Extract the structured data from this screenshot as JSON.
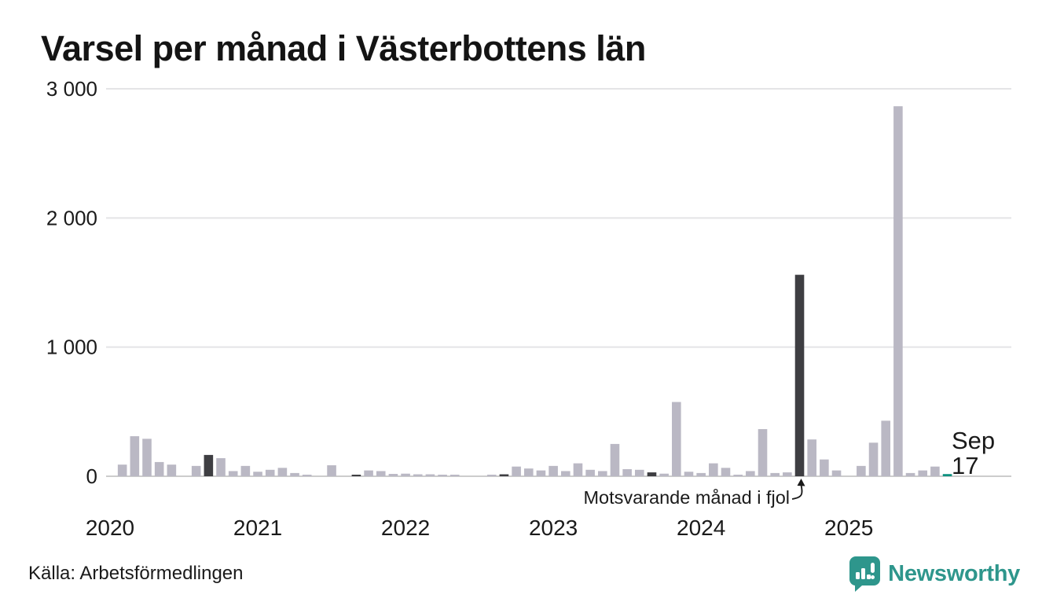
{
  "title": "Varsel per månad i Västerbottens län",
  "source": "Källa: Arbetsförmedlingen",
  "brand": {
    "name": "Newsworthy",
    "icon": "newsworthy-bubble-chart-icon",
    "color": "#2e968c"
  },
  "annotation": {
    "text": "Motsvarande månad i fjol",
    "points_to": "2024-09"
  },
  "current_label": {
    "line1": "Sep",
    "line2": "17"
  },
  "colors": {
    "bar": "#bab8c4",
    "highlight_prev_sep": "#3e3e42",
    "current_month": "#0e9180",
    "grid": "#e4e4e6",
    "axis_line": "#cccccc",
    "text": "#1a1a1a"
  },
  "chart_data": {
    "type": "bar",
    "title": "Varsel per månad i Västerbottens län",
    "xlabel": "",
    "ylabel": "",
    "ylim": [
      0,
      3000
    ],
    "grid": "horizontal",
    "x_start": "2020-01",
    "x_end": "2025-09",
    "year_ticks": [
      "2020",
      "2021",
      "2022",
      "2023",
      "2024",
      "2025"
    ],
    "y_ticks": [
      {
        "value": 0,
        "label": "0"
      },
      {
        "value": 1000,
        "label": "1 000"
      },
      {
        "value": 2000,
        "label": "2 000"
      },
      {
        "value": 3000,
        "label": "3 000"
      }
    ],
    "highlight_months": [
      "2020-09",
      "2021-09",
      "2022-09",
      "2023-09",
      "2024-09"
    ],
    "current_month": "2025-09",
    "current_value": 17,
    "series": [
      {
        "name": "Varsel",
        "values": [
          0,
          90,
          310,
          290,
          110,
          90,
          0,
          80,
          165,
          140,
          40,
          80,
          35,
          50,
          65,
          25,
          10,
          0,
          85,
          0,
          10,
          45,
          40,
          18,
          20,
          15,
          15,
          8,
          5,
          0,
          0,
          5,
          15,
          75,
          60,
          45,
          80,
          40,
          100,
          50,
          40,
          250,
          55,
          50,
          30,
          20,
          575,
          35,
          25,
          100,
          65,
          10,
          40,
          365,
          25,
          30,
          1560,
          285,
          130,
          45,
          0,
          80,
          260,
          430,
          2865,
          25,
          45,
          75,
          17
        ]
      }
    ]
  }
}
